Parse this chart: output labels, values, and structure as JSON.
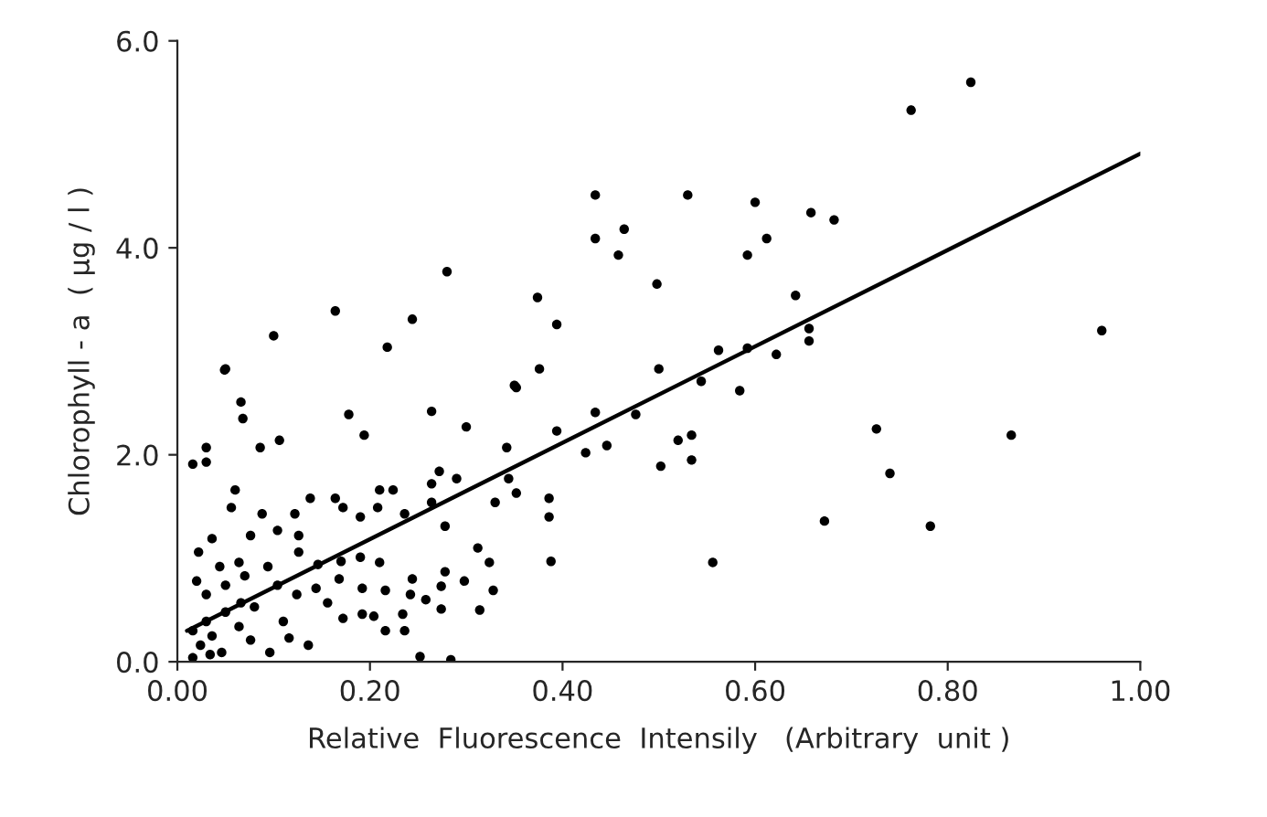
{
  "chart_data": {
    "type": "scatter",
    "xlabel": "Relative  Fluorescence  Intensily   (Arbitrary  unit )",
    "ylabel": "Chlorophyll - a  ( μg / l )",
    "xlim": [
      0,
      1.0
    ],
    "ylim": [
      0,
      6.0
    ],
    "xticks": [
      {
        "value": 0,
        "label": "0.00"
      },
      {
        "value": 0.2,
        "label": "0.20"
      },
      {
        "value": 0.4,
        "label": "0.40"
      },
      {
        "value": 0.6,
        "label": "0.60"
      },
      {
        "value": 0.8,
        "label": "0.80"
      },
      {
        "value": 1.0,
        "label": "1.00"
      }
    ],
    "yticks": [
      {
        "value": 0,
        "label": "0.0"
      },
      {
        "value": 2,
        "label": "2.0"
      },
      {
        "value": 4,
        "label": "4.0"
      },
      {
        "value": 6,
        "label": "6.0"
      }
    ],
    "grid": false,
    "legend": false,
    "marker": "circle",
    "series": [
      {
        "color": "#000000",
        "x": [
          0.049,
          0.1,
          0.164,
          0.218,
          0.244,
          0.28,
          0.374,
          0.394,
          0.35,
          0.376,
          0.434,
          0.434,
          0.464,
          0.458,
          0.498,
          0.5,
          0.53,
          0.762,
          0.824,
          0.6,
          0.658,
          0.682,
          0.612,
          0.592,
          0.642,
          0.656,
          0.656,
          0.562,
          0.592,
          0.622,
          0.584,
          0.544,
          0.96,
          0.52,
          0.534,
          0.502,
          0.534,
          0.726,
          0.74,
          0.556,
          0.672,
          0.782,
          0.866,
          0.068,
          0.178,
          0.264,
          0.352,
          0.434,
          0.476,
          0.086,
          0.106,
          0.194,
          0.3,
          0.394,
          0.342,
          0.424,
          0.446,
          0.03,
          0.05,
          0.066,
          0.03,
          0.016,
          0.06,
          0.056,
          0.036,
          0.022,
          0.088,
          0.076,
          0.104,
          0.122,
          0.138,
          0.164,
          0.172,
          0.19,
          0.21,
          0.224,
          0.208,
          0.236,
          0.264,
          0.29,
          0.272,
          0.264,
          0.33,
          0.352,
          0.278,
          0.386,
          0.386,
          0.388,
          0.312,
          0.324,
          0.278,
          0.298,
          0.328,
          0.314,
          0.244,
          0.274,
          0.274,
          0.242,
          0.258,
          0.21,
          0.19,
          0.192,
          0.216,
          0.172,
          0.192,
          0.204,
          0.234,
          0.216,
          0.236,
          0.252,
          0.284,
          0.17,
          0.168,
          0.146,
          0.156,
          0.136,
          0.116,
          0.096,
          0.124,
          0.144,
          0.126,
          0.126,
          0.094,
          0.07,
          0.05,
          0.03,
          0.02,
          0.044,
          0.064,
          0.08,
          0.05,
          0.03,
          0.016,
          0.036,
          0.024,
          0.046,
          0.064,
          0.076,
          0.016,
          0.034,
          0.066,
          0.104,
          0.11,
          0.344
        ],
        "values": [
          2.82,
          3.15,
          3.39,
          3.04,
          3.31,
          3.77,
          3.52,
          3.26,
          2.67,
          2.83,
          4.51,
          4.09,
          4.18,
          3.93,
          3.65,
          2.83,
          4.51,
          5.33,
          5.6,
          4.44,
          4.34,
          4.27,
          4.09,
          3.93,
          3.54,
          3.22,
          3.1,
          3.01,
          3.03,
          2.97,
          2.62,
          2.71,
          3.2,
          2.14,
          2.19,
          1.89,
          1.95,
          2.25,
          1.82,
          0.96,
          1.36,
          1.31,
          2.19,
          2.35,
          2.39,
          2.42,
          2.65,
          2.41,
          2.39,
          2.07,
          2.14,
          2.19,
          2.27,
          2.23,
          2.07,
          2.02,
          2.09,
          1.93,
          2.83,
          2.51,
          2.07,
          1.91,
          1.66,
          1.49,
          1.19,
          1.06,
          1.43,
          1.22,
          1.27,
          1.43,
          1.58,
          1.58,
          1.49,
          1.4,
          1.66,
          1.66,
          1.49,
          1.43,
          1.72,
          1.77,
          1.84,
          1.54,
          1.54,
          1.63,
          1.31,
          1.58,
          1.4,
          0.97,
          1.1,
          0.96,
          0.87,
          0.78,
          0.69,
          0.5,
          0.8,
          0.73,
          0.51,
          0.65,
          0.6,
          0.96,
          1.01,
          0.71,
          0.69,
          0.42,
          0.46,
          0.44,
          0.46,
          0.3,
          0.3,
          0.05,
          0.02,
          0.97,
          0.8,
          0.94,
          0.57,
          0.16,
          0.23,
          0.09,
          0.65,
          0.71,
          1.06,
          1.22,
          0.92,
          0.83,
          0.74,
          0.65,
          0.78,
          0.92,
          0.96,
          0.53,
          0.48,
          0.39,
          0.3,
          0.25,
          0.16,
          0.09,
          0.34,
          0.21,
          0.04,
          0.07,
          0.57,
          0.74,
          0.39,
          1.77
        ]
      },
      {
        "type": "line",
        "color": "#000000",
        "marker": "none",
        "line_style": "solid",
        "x": [
          0.01,
          1.0
        ],
        "values": [
          0.3,
          4.91
        ]
      }
    ]
  }
}
